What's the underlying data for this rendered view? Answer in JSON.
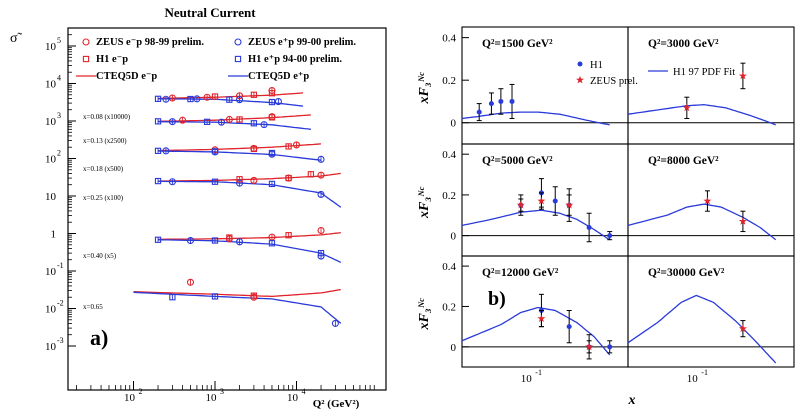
{
  "left": {
    "title": "Neutral Current",
    "ylabel": "σ̃",
    "xlabel": "Q² (GeV²)",
    "panel_label": "a)",
    "legend": [
      {
        "label": "ZEUS e⁻p 98-99 prelim.",
        "color": "#e0242b",
        "marker": "circle"
      },
      {
        "label": "ZEUS e⁺p 99-00 prelim.",
        "color": "#2a3bd9",
        "marker": "circle"
      },
      {
        "label": "H1 e⁻p",
        "color": "#e0242b",
        "marker": "square"
      },
      {
        "label": "H1 e⁺p 94-00 prelim.",
        "color": "#2a3bd9",
        "marker": "square"
      },
      {
        "label": "CTEQ5D e⁻p",
        "color": "#e0242b",
        "marker": "line"
      },
      {
        "label": "CTEQ5D e⁺p",
        "color": "#2a3bd9",
        "marker": "line"
      }
    ],
    "bin_labels": [
      "x=0.08 (x10000)",
      "x=0.13 (x2500)",
      "x=0.18 (x500)",
      "x=0.25 (x100)",
      "x=0.40 (x5)",
      "x=0.65"
    ],
    "y_ticks": [
      "10",
      "10",
      "10",
      "10",
      "10",
      "10",
      "1",
      "10",
      "10",
      "10"
    ],
    "y_exps": [
      "5",
      "4",
      "3",
      "2",
      "",
      "",
      "",
      "-1",
      "-2",
      "-3"
    ],
    "x_ticks": [
      "10",
      "10",
      "10"
    ],
    "x_exps": [
      "2",
      "3",
      "4"
    ]
  },
  "right": {
    "panel_label": "b)",
    "ylabel": "xF₃ᴺᶜ",
    "xlabel": "x",
    "legend": [
      {
        "label": "H1",
        "color": "#2a3bd9",
        "marker": "dot"
      },
      {
        "label": "ZEUS prel.",
        "color": "#e0242b",
        "marker": "star"
      },
      {
        "label": "H1 97 PDF Fit",
        "color": "#2a3bd9",
        "marker": "line"
      }
    ],
    "panels": [
      "Q²=1500 GeV²",
      "Q²=3000 GeV²",
      "Q²=5000 GeV²",
      "Q²=8000 GeV²",
      "Q²=12000 GeV²",
      "Q²=30000 GeV²"
    ],
    "y_ticks": [
      "0.4",
      "0.2",
      "0"
    ],
    "x_ticks": [
      "10",
      "10"
    ],
    "x_exps": [
      "-1",
      "-1"
    ]
  },
  "chart_data": [
    {
      "type": "scatter",
      "title": "Neutral Current",
      "xlabel": "Q² (GeV²)",
      "ylabel": "σ̃",
      "xscale": "log",
      "yscale": "log",
      "xlim": [
        10,
        50000
      ],
      "ylim": [
        0.0005,
        500000
      ],
      "grid": false,
      "legend_position": "top",
      "series": [
        {
          "name": "CTEQ5D e⁻p",
          "bin": "x=0.08 (x10000)",
          "x": [
            200,
            1000,
            5000,
            12000
          ],
          "y": [
            4000,
            4300,
            4900,
            5600
          ]
        },
        {
          "name": "CTEQ5D e⁺p",
          "bin": "x=0.08 (x10000)",
          "x": [
            200,
            1000,
            5000,
            12000
          ],
          "y": [
            3900,
            3800,
            3100,
            2500
          ]
        },
        {
          "name": "CTEQ5D e⁻p",
          "bin": "x=0.13 (x2500)",
          "x": [
            200,
            1000,
            5000,
            15000
          ],
          "y": [
            980,
            1050,
            1230,
            1450
          ]
        },
        {
          "name": "CTEQ5D e⁺p",
          "bin": "x=0.13 (x2500)",
          "x": [
            200,
            1000,
            5000,
            15000
          ],
          "y": [
            960,
            930,
            790,
            600
          ]
        },
        {
          "name": "CTEQ5D e⁻p",
          "bin": "x=0.18 (x500)",
          "x": [
            200,
            1000,
            5000,
            20000
          ],
          "y": [
            162,
            175,
            200,
            245
          ]
        },
        {
          "name": "CTEQ5D e⁺p",
          "bin": "x=0.18 (x500)",
          "x": [
            200,
            1000,
            5000,
            20000
          ],
          "y": [
            158,
            150,
            128,
            90
          ]
        },
        {
          "name": "CTEQ5D e⁻p",
          "bin": "x=0.25 (x100)",
          "x": [
            200,
            1000,
            5000,
            20000,
            35000
          ],
          "y": [
            25,
            26,
            29,
            34,
            40
          ]
        },
        {
          "name": "CTEQ5D e⁺p",
          "bin": "x=0.25 (x100)",
          "x": [
            200,
            1000,
            5000,
            20000,
            35000
          ],
          "y": [
            24.5,
            24,
            20,
            12,
            5
          ]
        },
        {
          "name": "CTEQ5D e⁻p",
          "bin": "x=0.40 (x5)",
          "x": [
            200,
            1000,
            5000,
            20000,
            35000
          ],
          "y": [
            0.7,
            0.72,
            0.78,
            0.92,
            1.05
          ]
        },
        {
          "name": "CTEQ5D e⁺p",
          "bin": "x=0.40 (x5)",
          "x": [
            200,
            1000,
            5000,
            20000,
            35000
          ],
          "y": [
            0.68,
            0.64,
            0.52,
            0.3,
            0.17
          ]
        },
        {
          "name": "CTEQ5D e⁻p",
          "bin": "x=0.65",
          "x": [
            100,
            1000,
            5000,
            20000,
            35000
          ],
          "y": [
            0.028,
            0.024,
            0.021,
            0.026,
            0.032
          ]
        },
        {
          "name": "CTEQ5D e⁺p",
          "bin": "x=0.65",
          "x": [
            100,
            1000,
            5000,
            20000,
            35000
          ],
          "y": [
            0.027,
            0.021,
            0.018,
            0.011,
            0.004
          ]
        },
        {
          "name": "ZEUS e⁻p 98-99 prelim.",
          "x": [
            300,
            800,
            2000,
            5000,
            400,
            1500,
            5000,
            1000,
            3000,
            10000,
            3000,
            8000,
            20000,
            1500,
            5000,
            20000,
            500,
            3000
          ],
          "y": [
            4100,
            4300,
            4700,
            6500,
            1050,
            1100,
            1300,
            170,
            185,
            230,
            26,
            30,
            36,
            0.72,
            0.8,
            1.2,
            0.05,
            0.02
          ]
        },
        {
          "name": "ZEUS e⁺p 99-00 prelim.",
          "x": [
            250,
            600,
            2000,
            6000,
            300,
            1200,
            4000,
            250,
            1000,
            5000,
            20000,
            300,
            2000,
            20000,
            500,
            2000,
            20000,
            30000
          ],
          "y": [
            3800,
            3900,
            3700,
            3300,
            960,
            930,
            800,
            160,
            150,
            130,
            95,
            24,
            22,
            11,
            0.65,
            0.6,
            0.25,
            0.004
          ]
        },
        {
          "name": "H1 e⁻p",
          "x": [
            1000,
            3000,
            5000,
            2000,
            5000,
            3000,
            8000,
            2000,
            8000,
            15000,
            1500,
            8000,
            3000
          ],
          "y": [
            4500,
            5000,
            5500,
            1100,
            1250,
            180,
            210,
            28,
            30,
            38,
            0.78,
            0.9,
            0.022
          ]
        },
        {
          "name": "H1 e⁺p 94-00 prelim.",
          "x": [
            200,
            500,
            1500,
            5000,
            200,
            800,
            3000,
            200,
            1000,
            5000,
            200,
            1000,
            5000,
            200,
            1000,
            5000,
            20000,
            300,
            1000
          ],
          "y": [
            3900,
            3850,
            3700,
            3200,
            980,
            950,
            870,
            160,
            155,
            140,
            25,
            24,
            21,
            0.68,
            0.65,
            0.55,
            0.3,
            0.02,
            0.021
          ]
        }
      ]
    },
    {
      "type": "scatter",
      "title": "",
      "xlabel": "x",
      "ylabel": "xF₃ᴺᶜ",
      "xscale": "log",
      "ylim": [
        -0.1,
        0.45
      ],
      "grid": false,
      "panels": [
        {
          "label": "Q²=1500 GeV²",
          "xlim": [
            0.02,
            1
          ],
          "fit": {
            "name": "H1 97 PDF Fit",
            "x": [
              0.02,
              0.03,
              0.05,
              0.08,
              0.12,
              0.2,
              0.35,
              0.5,
              0.65
            ],
            "y": [
              0.02,
              0.03,
              0.045,
              0.05,
              0.05,
              0.04,
              0.015,
              0.0,
              -0.01
            ]
          },
          "H1": {
            "x": [
              0.03,
              0.04,
              0.05,
              0.065
            ],
            "y": [
              0.05,
              0.09,
              0.1,
              0.1
            ],
            "err": [
              0.04,
              0.05,
              0.06,
              0.08
            ]
          },
          "ZEUS": {
            "x": [],
            "y": [],
            "err": []
          }
        },
        {
          "label": "Q²=3000 GeV²",
          "xlim": [
            0.02,
            1
          ],
          "fit": {
            "name": "H1 97 PDF Fit",
            "x": [
              0.02,
              0.04,
              0.08,
              0.12,
              0.2,
              0.35,
              0.5,
              0.65
            ],
            "y": [
              0.04,
              0.06,
              0.08,
              0.085,
              0.07,
              0.035,
              0.01,
              -0.01
            ]
          },
          "H1": {
            "x": [],
            "y": [],
            "err": []
          },
          "ZEUS": {
            "x": [
              0.08,
              0.3
            ],
            "y": [
              0.07,
              0.22
            ],
            "err": [
              0.05,
              0.06
            ]
          }
        },
        {
          "label": "Q²=5000 GeV²",
          "xlim": [
            0.02,
            1
          ],
          "fit": {
            "name": "H1 97 PDF Fit",
            "x": [
              0.02,
              0.04,
              0.08,
              0.13,
              0.2,
              0.3,
              0.45,
              0.6,
              0.65
            ],
            "y": [
              0.05,
              0.08,
              0.115,
              0.125,
              0.11,
              0.08,
              0.03,
              -0.01,
              -0.02
            ]
          },
          "H1": {
            "x": [
              0.08,
              0.13,
              0.18,
              0.25,
              0.4,
              0.65
            ],
            "y": [
              0.15,
              0.21,
              0.17,
              0.15,
              0.04,
              0.0
            ],
            "err": [
              0.05,
              0.07,
              0.07,
              0.08,
              0.07,
              0.02
            ]
          },
          "ZEUS": {
            "x": [
              0.08,
              0.13,
              0.25
            ],
            "y": [
              0.15,
              0.17,
              0.15
            ],
            "err": [
              0.03,
              0.04,
              0.05
            ]
          }
        },
        {
          "label": "Q²=8000 GeV²",
          "xlim": [
            0.02,
            1
          ],
          "fit": {
            "name": "H1 97 PDF Fit",
            "x": [
              0.02,
              0.05,
              0.08,
              0.12,
              0.18,
              0.3,
              0.45,
              0.65
            ],
            "y": [
              0.05,
              0.1,
              0.14,
              0.155,
              0.14,
              0.09,
              0.04,
              -0.02
            ]
          },
          "H1": {
            "x": [],
            "y": [],
            "err": []
          },
          "ZEUS": {
            "x": [
              0.13,
              0.3
            ],
            "y": [
              0.17,
              0.07
            ],
            "err": [
              0.05,
              0.05
            ]
          }
        },
        {
          "label": "Q²=12000 GeV²",
          "xlim": [
            0.02,
            1
          ],
          "fit": {
            "name": "H1 97 PDF Fit",
            "x": [
              0.02,
              0.05,
              0.08,
              0.12,
              0.18,
              0.3,
              0.45,
              0.65
            ],
            "y": [
              0.03,
              0.11,
              0.17,
              0.195,
              0.18,
              0.12,
              0.05,
              -0.04
            ]
          },
          "H1": {
            "x": [
              0.13,
              0.25,
              0.4,
              0.65
            ],
            "y": [
              0.18,
              0.1,
              0.0,
              0.0
            ],
            "err": [
              0.08,
              0.08,
              0.06,
              0.03
            ]
          },
          "ZEUS": {
            "x": [
              0.13,
              0.4
            ],
            "y": [
              0.14,
              0.0
            ],
            "err": [
              0.04,
              0.03
            ]
          }
        },
        {
          "label": "Q²=30000 GeV²",
          "xlim": [
            0.02,
            1
          ],
          "fit": {
            "name": "H1 97 PDF Fit",
            "x": [
              0.02,
              0.04,
              0.07,
              0.1,
              0.15,
              0.25,
              0.4,
              0.65
            ],
            "y": [
              0.02,
              0.12,
              0.22,
              0.255,
              0.22,
              0.13,
              0.03,
              -0.08
            ]
          },
          "H1": {
            "x": [],
            "y": [],
            "err": []
          },
          "ZEUS": {
            "x": [
              0.3
            ],
            "y": [
              0.09
            ],
            "err": [
              0.04
            ]
          }
        }
      ]
    }
  ]
}
